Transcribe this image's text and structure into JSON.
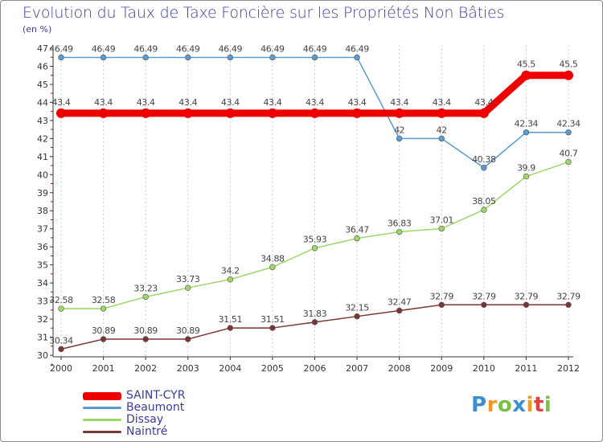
{
  "colors": {
    "title": "#3c3f9a",
    "axis": "#333333",
    "grid": "#cccccc",
    "tick_red": "#cc0000"
  },
  "logo": {
    "text": "Proxiti",
    "letters": [
      {
        "ch": "P",
        "color": "#3d8fd1"
      },
      {
        "ch": "r",
        "color": "#f29a1f"
      },
      {
        "ch": "o",
        "color": "#7cc143"
      },
      {
        "ch": "x",
        "color": "#3d8fd1"
      },
      {
        "ch": "i",
        "color": "#f29a1f"
      },
      {
        "ch": "t",
        "color": "#e23f3f"
      },
      {
        "ch": "i",
        "color": "#7cc143"
      }
    ]
  },
  "chart_data": {
    "type": "line",
    "title": "Evolution du Taux de Taxe Foncière sur les Propriétés Non Bâties",
    "subtitle": "(en %)",
    "xlabel": "",
    "ylabel": "",
    "ylim": [
      30,
      47
    ],
    "yticks": [
      30,
      31,
      32,
      33,
      34,
      35,
      36,
      37,
      38,
      39,
      40,
      41,
      42,
      43,
      44,
      45,
      46,
      47
    ],
    "x": [
      "2000",
      "2001",
      "2002",
      "2003",
      "2004",
      "2005",
      "2006",
      "2007",
      "2008",
      "2009",
      "2010",
      "2011",
      "2012"
    ],
    "grid": true,
    "legend_position": "bottom-left",
    "series": [
      {
        "name": "SAINT-CYR",
        "color": "#ee0000",
        "weight": "thick",
        "values": [
          43.4,
          43.4,
          43.4,
          43.4,
          43.4,
          43.4,
          43.4,
          43.4,
          43.4,
          43.4,
          43.4,
          45.5,
          45.5
        ],
        "labels": [
          "43.4",
          "43.4",
          "43.4",
          "43.4",
          "43.4",
          "43.4",
          "43.4",
          "43.4",
          "43.4",
          "43.4",
          "43.4",
          "45.5",
          "45.5"
        ]
      },
      {
        "name": "Beaumont",
        "color": "#5b9bd0",
        "weight": "thin",
        "values": [
          46.49,
          46.49,
          46.49,
          46.49,
          46.49,
          46.49,
          46.49,
          46.49,
          42,
          42,
          40.38,
          42.34,
          42.34
        ],
        "labels": [
          "46.49",
          "46.49",
          "46.49",
          "46.49",
          "46.49",
          "46.49",
          "46.49",
          "46.49",
          "42",
          "42",
          "40.38",
          "42.34",
          "42.34"
        ]
      },
      {
        "name": "Dissay",
        "color": "#9fd66a",
        "weight": "thin",
        "values": [
          32.58,
          32.58,
          33.23,
          33.73,
          34.2,
          34.88,
          35.93,
          36.47,
          36.83,
          37.01,
          38.05,
          39.9,
          40.7
        ],
        "labels": [
          "32.58",
          "32.58",
          "33.23",
          "33.73",
          "34.2",
          "34.88",
          "35.93",
          "36.47",
          "36.83",
          "37.01",
          "38.05",
          "39.9",
          "40.7"
        ]
      },
      {
        "name": "Naintré",
        "color": "#7a3535",
        "weight": "thin",
        "values": [
          30.34,
          30.89,
          30.89,
          30.89,
          31.51,
          31.51,
          31.83,
          32.15,
          32.47,
          32.79,
          32.79,
          32.79,
          32.79
        ],
        "labels": [
          "30.34",
          "30.89",
          "30.89",
          "30.89",
          "31.51",
          "31.51",
          "31.83",
          "32.15",
          "32.47",
          "32.79",
          "32.79",
          "32.79",
          "32.79"
        ]
      }
    ]
  }
}
